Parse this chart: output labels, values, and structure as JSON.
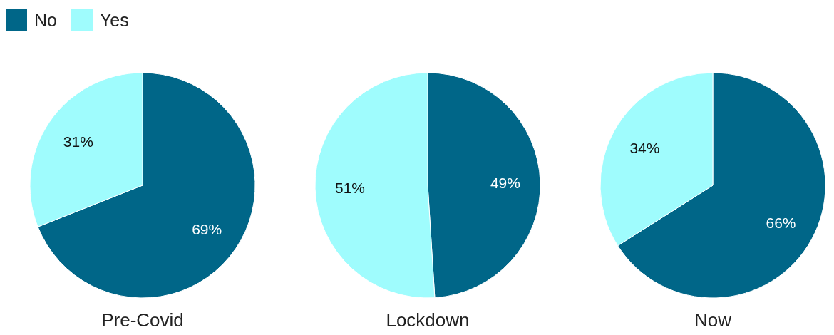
{
  "chart_data": [
    {
      "type": "pie",
      "xlabel": "Pre-Covid",
      "categories": [
        "No",
        "Yes"
      ],
      "values": [
        69,
        31
      ],
      "colors": [
        "#006688",
        "#9ffcfd"
      ],
      "value_labels": [
        "69%",
        "31%"
      ],
      "legend": "top left"
    },
    {
      "type": "pie",
      "xlabel": "Lockdown",
      "categories": [
        null,
        null
      ],
      "values": [
        49,
        51
      ],
      "colors": [
        "#006688",
        "#9ffcfd"
      ],
      "value_labels": [
        "49%",
        "51%"
      ]
    },
    {
      "type": "pie",
      "xlabel": "Now",
      "categories": [
        null,
        null
      ],
      "values": [
        66,
        34
      ],
      "colors": [
        "#006688",
        "#9ffcfd"
      ],
      "value_labels": [
        "66%",
        "34%"
      ]
    }
  ]
}
